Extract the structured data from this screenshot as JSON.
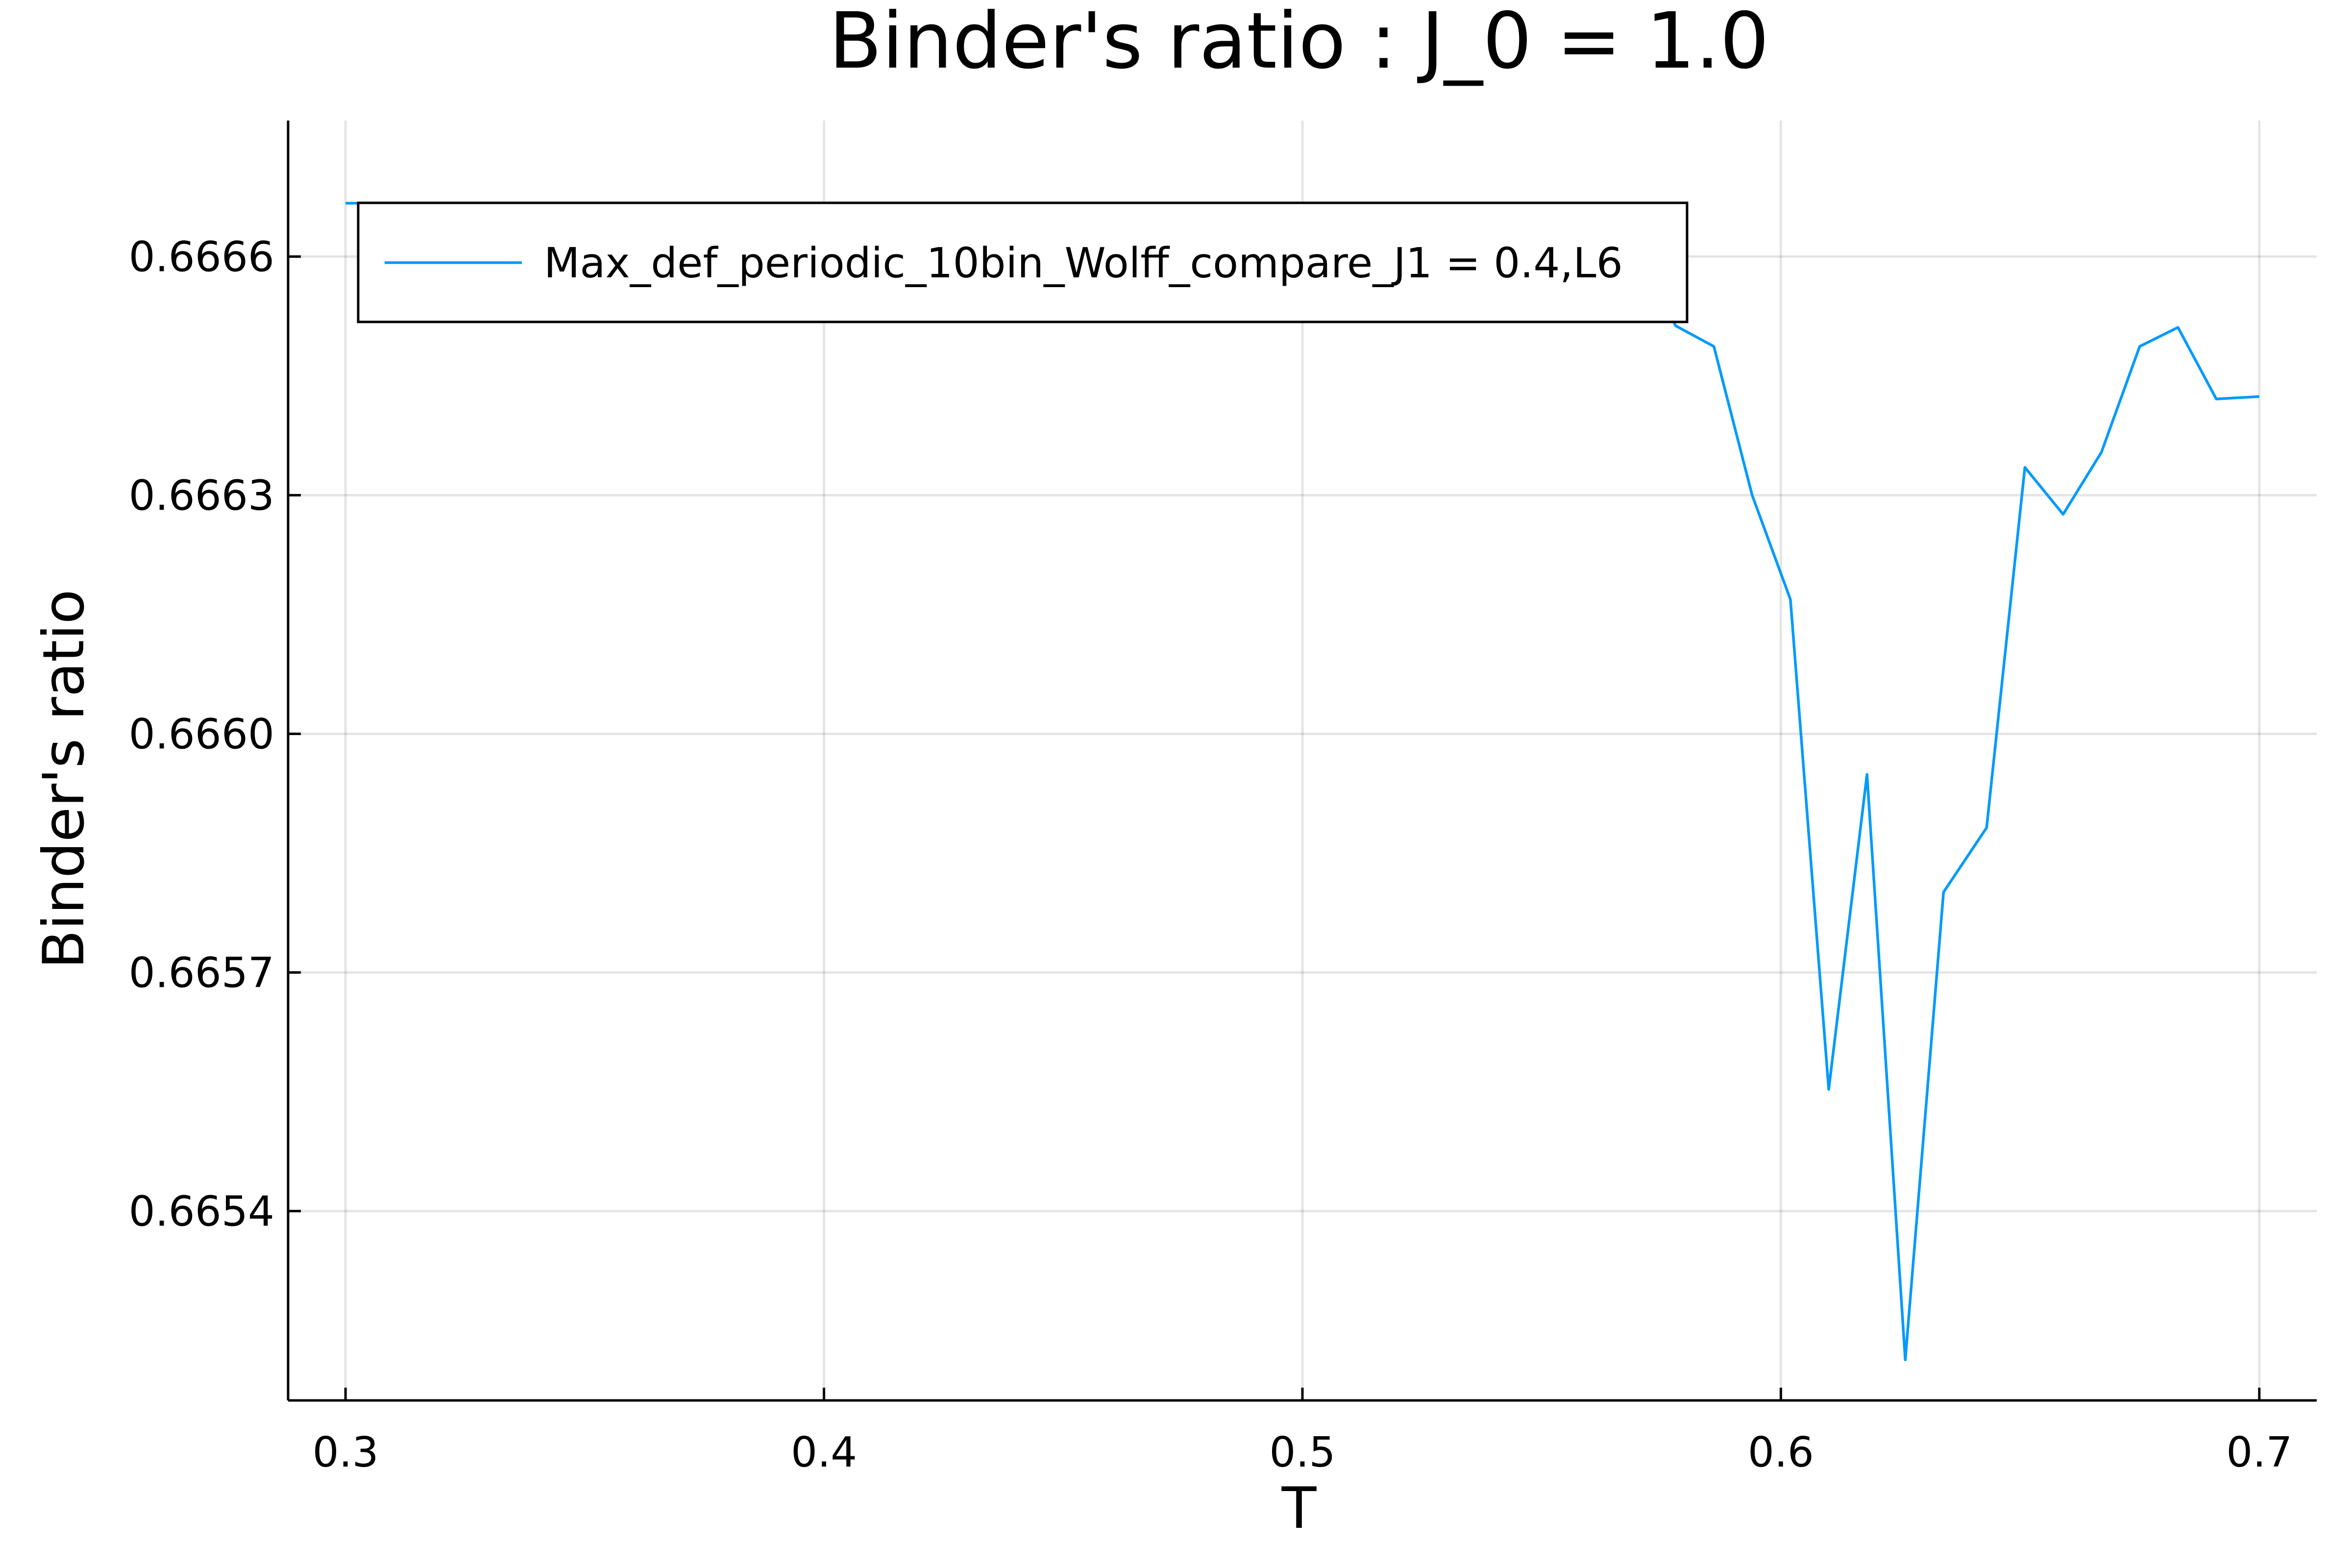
{
  "chart_data": {
    "type": "line",
    "title": "Binder's ratio : J_0 = 1.0",
    "xlabel": "T",
    "ylabel": "Binder's ratio",
    "xlim": [
      0.288,
      0.712
    ],
    "ylim": [
      0.665162,
      0.666771
    ],
    "xticks": [
      0.3,
      0.4,
      0.5,
      0.6,
      0.7
    ],
    "xtick_labels": [
      "0.3",
      "0.4",
      "0.5",
      "0.6",
      "0.7"
    ],
    "yticks": [
      0.6654,
      0.6657,
      0.666,
      0.6663,
      0.6666
    ],
    "ytick_labels": [
      "0.6654",
      "0.6657",
      "0.6660",
      "0.6663",
      "0.6666"
    ],
    "grid": true,
    "legend": "top-left",
    "series": [
      {
        "name": "Max_def_periodic_10bin_Wolff_compare_J1 = 0.4,L6",
        "color": "#009AFA",
        "x": [
          0.3,
          0.35,
          0.4,
          0.45,
          0.5,
          0.52,
          0.537,
          0.545,
          0.553,
          0.561,
          0.569,
          0.578,
          0.586,
          0.594,
          0.602,
          0.61,
          0.618,
          0.626,
          0.634,
          0.643,
          0.651,
          0.659,
          0.667,
          0.675,
          0.683,
          0.691,
          0.7
        ],
        "values": [
          0.666667,
          0.666667,
          0.666667,
          0.666667,
          0.666666,
          0.666666,
          0.666665,
          0.666664,
          0.666663,
          0.666652,
          0.666624,
          0.666513,
          0.666487,
          0.6663,
          0.666169,
          0.665553,
          0.665949,
          0.665213,
          0.665801,
          0.665882,
          0.666335,
          0.666276,
          0.666354,
          0.666487,
          0.666511,
          0.666421,
          0.666424
        ]
      }
    ]
  }
}
